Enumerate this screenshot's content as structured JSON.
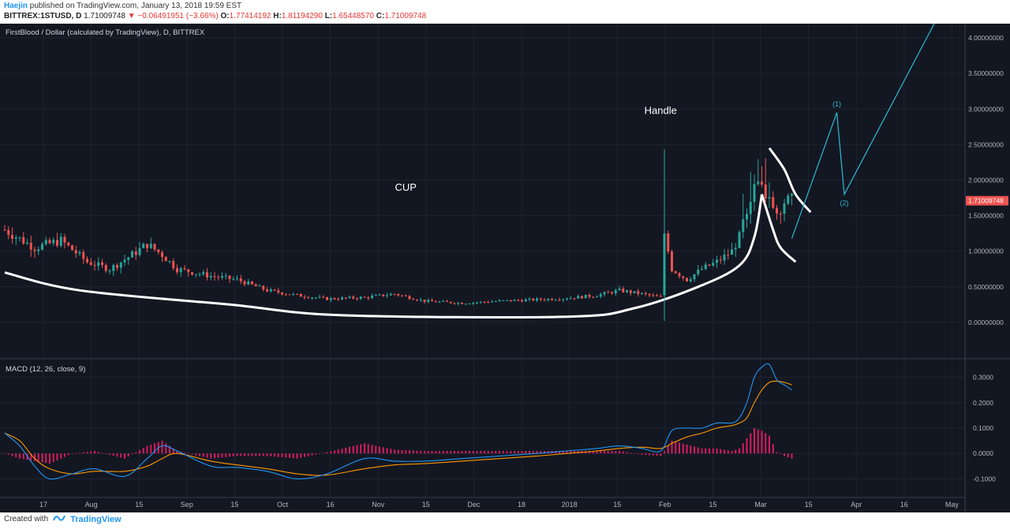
{
  "header": {
    "author": "Haejin",
    "published_text": "published on TradingView.com, January 13, 2018 19:59 EST",
    "symbol": "BITTREX:1STUSD, D",
    "last": "1.71009748",
    "change": "−0.06491951 (−3.66%)",
    "o_label": "O:",
    "o_value": "1.77414192",
    "h_label": "H:",
    "h_value": "1.81194290",
    "l_label": "L:",
    "l_value": "1.65448570",
    "c_label": "C:",
    "c_value": "1.71009748"
  },
  "footer": {
    "created_with": "Created with",
    "brand": "TradingView"
  },
  "colors": {
    "background": "#131722",
    "up": "#26a69a",
    "down": "#ef5350",
    "annotation": "#ffffff",
    "projection": "#2bbcd4",
    "macd": "#2196f3",
    "signal": "#ff9800",
    "histogram": "#d81b60",
    "price_badge": "#ef5350"
  },
  "chart_data": [
    {
      "type": "candlestick",
      "title": "FirstBlood / Dollar (calculated by TradingView), D, BITTREX",
      "ylim": [
        -0.5,
        4.2
      ],
      "y_ticks": [
        {
          "value": 0,
          "label": "0.00000000"
        },
        {
          "value": 0.5,
          "label": "0.50000000"
        },
        {
          "value": 1.0,
          "label": "1.00000000"
        },
        {
          "value": 1.5,
          "label": "1.50000000"
        },
        {
          "value": 2.0,
          "label": "2.00000000"
        },
        {
          "value": 2.5,
          "label": "2.50000000"
        },
        {
          "value": 3.0,
          "label": "3.00000000"
        },
        {
          "value": 3.5,
          "label": "3.50000000"
        },
        {
          "value": 4.0,
          "label": "4.00000000"
        }
      ],
      "x_ticks": [
        "17",
        "Aug",
        "15",
        "Sep",
        "15",
        "Oct",
        "16",
        "Nov",
        "15",
        "Dec",
        "18",
        "2018",
        "15",
        "Feb",
        "15",
        "Mar",
        "15",
        "Apr",
        "16",
        "May"
      ],
      "last_price": {
        "value": 1.71009748,
        "label": "1.71009748"
      },
      "price_anchors": [
        [
          0,
          1.3
        ],
        [
          8,
          1.05
        ],
        [
          15,
          1.15
        ],
        [
          22,
          0.85
        ],
        [
          28,
          0.75
        ],
        [
          34,
          0.95
        ],
        [
          38,
          1.1
        ],
        [
          42,
          0.95
        ],
        [
          46,
          0.75
        ],
        [
          55,
          0.65
        ],
        [
          62,
          0.6
        ],
        [
          70,
          0.45
        ],
        [
          78,
          0.38
        ],
        [
          86,
          0.33
        ],
        [
          96,
          0.35
        ],
        [
          104,
          0.4
        ],
        [
          112,
          0.3
        ],
        [
          122,
          0.27
        ],
        [
          132,
          0.3
        ],
        [
          142,
          0.32
        ],
        [
          150,
          0.34
        ],
        [
          158,
          0.38
        ],
        [
          164,
          0.45
        ],
        [
          170,
          0.4
        ],
        [
          175,
          0.35
        ],
        [
          176,
          1.25
        ],
        [
          178,
          0.75
        ],
        [
          182,
          0.6
        ],
        [
          186,
          0.75
        ],
        [
          190,
          0.85
        ],
        [
          194,
          1.0
        ],
        [
          196,
          1.2
        ],
        [
          198,
          1.6
        ],
        [
          200,
          1.95
        ],
        [
          202,
          1.9
        ],
        [
          204,
          1.75
        ],
        [
          206,
          1.55
        ],
        [
          208,
          1.7
        ],
        [
          210,
          1.71
        ]
      ],
      "spikes": [
        {
          "day": 176,
          "high": 2.43,
          "low": 0.02,
          "open": 0.38,
          "close": 1.25
        }
      ],
      "annotations": [
        {
          "text": "CUP",
          "day": 107,
          "price": 1.85
        },
        {
          "text": "Handle",
          "day": 175,
          "price": 2.93
        }
      ],
      "cup_curve": [
        [
          0,
          0.7
        ],
        [
          20,
          0.45
        ],
        [
          60,
          0.25
        ],
        [
          90,
          0.1
        ],
        [
          150,
          0.08
        ],
        [
          168,
          0.2
        ],
        [
          185,
          0.5
        ],
        [
          196,
          0.8
        ],
        [
          200,
          1.2
        ],
        [
          202,
          1.8
        ]
      ],
      "handle_curves": [
        [
          [
            204,
            2.45
          ],
          [
            208,
            2.15
          ],
          [
            211,
            1.8
          ],
          [
            215,
            1.55
          ]
        ],
        [
          [
            202,
            1.8
          ],
          [
            205,
            1.3
          ],
          [
            207,
            1.05
          ],
          [
            211,
            0.85
          ]
        ]
      ],
      "projection": [
        {
          "day": 210,
          "price": 1.18
        },
        {
          "day": 222,
          "price": 2.95,
          "label": "(1)"
        },
        {
          "day": 224,
          "price": 1.8,
          "label": "(2)"
        },
        {
          "day": 248,
          "price": 4.2
        }
      ]
    },
    {
      "type": "line",
      "title": "MACD (12, 26, close, 9)",
      "ylim": [
        -0.17,
        0.37
      ],
      "y_ticks": [
        {
          "value": 0.3,
          "label": "0.3000"
        },
        {
          "value": 0.2,
          "label": "0.2000"
        },
        {
          "value": 0.1,
          "label": "0.1000"
        },
        {
          "value": 0,
          "label": "0.0000"
        },
        {
          "value": -0.1,
          "label": "-0.1000"
        }
      ],
      "series": [
        {
          "key": "macd",
          "anchors": [
            [
              0,
              0.08
            ],
            [
              4,
              0.03
            ],
            [
              8,
              -0.05
            ],
            [
              12,
              -0.1
            ],
            [
              18,
              -0.08
            ],
            [
              24,
              -0.06
            ],
            [
              32,
              -0.09
            ],
            [
              38,
              -0.02
            ],
            [
              42,
              0.03
            ],
            [
              46,
              0.01
            ],
            [
              55,
              -0.05
            ],
            [
              62,
              -0.055
            ],
            [
              70,
              -0.07
            ],
            [
              78,
              -0.1
            ],
            [
              86,
              -0.08
            ],
            [
              96,
              -0.02
            ],
            [
              104,
              -0.03
            ],
            [
              112,
              -0.03
            ],
            [
              122,
              -0.02
            ],
            [
              132,
              -0.01
            ],
            [
              142,
              0.0
            ],
            [
              150,
              0.01
            ],
            [
              158,
              0.02
            ],
            [
              164,
              0.03
            ],
            [
              170,
              0.02
            ],
            [
              175,
              0.01
            ],
            [
              178,
              0.09
            ],
            [
              182,
              0.1
            ],
            [
              186,
              0.1
            ],
            [
              190,
              0.12
            ],
            [
              194,
              0.12
            ],
            [
              196,
              0.14
            ],
            [
              198,
              0.2
            ],
            [
              200,
              0.3
            ],
            [
              202,
              0.34
            ],
            [
              204,
              0.35
            ],
            [
              206,
              0.29
            ],
            [
              208,
              0.27
            ],
            [
              210,
              0.25
            ]
          ]
        },
        {
          "key": "signal",
          "anchors": [
            [
              0,
              0.08
            ],
            [
              4,
              0.05
            ],
            [
              8,
              -0.02
            ],
            [
              12,
              -0.06
            ],
            [
              18,
              -0.08
            ],
            [
              24,
              -0.07
            ],
            [
              32,
              -0.07
            ],
            [
              38,
              -0.05
            ],
            [
              42,
              -0.02
            ],
            [
              46,
              0.0
            ],
            [
              55,
              -0.03
            ],
            [
              62,
              -0.045
            ],
            [
              70,
              -0.06
            ],
            [
              78,
              -0.08
            ],
            [
              86,
              -0.085
            ],
            [
              96,
              -0.06
            ],
            [
              104,
              -0.045
            ],
            [
              112,
              -0.04
            ],
            [
              122,
              -0.03
            ],
            [
              132,
              -0.02
            ],
            [
              142,
              -0.01
            ],
            [
              150,
              0.0
            ],
            [
              158,
              0.01
            ],
            [
              164,
              0.02
            ],
            [
              170,
              0.025
            ],
            [
              175,
              0.02
            ],
            [
              178,
              0.04
            ],
            [
              182,
              0.065
            ],
            [
              186,
              0.08
            ],
            [
              190,
              0.1
            ],
            [
              194,
              0.11
            ],
            [
              196,
              0.12
            ],
            [
              198,
              0.14
            ],
            [
              200,
              0.2
            ],
            [
              202,
              0.25
            ],
            [
              204,
              0.28
            ],
            [
              206,
              0.285
            ],
            [
              208,
              0.28
            ],
            [
              210,
              0.27
            ]
          ]
        }
      ]
    }
  ]
}
